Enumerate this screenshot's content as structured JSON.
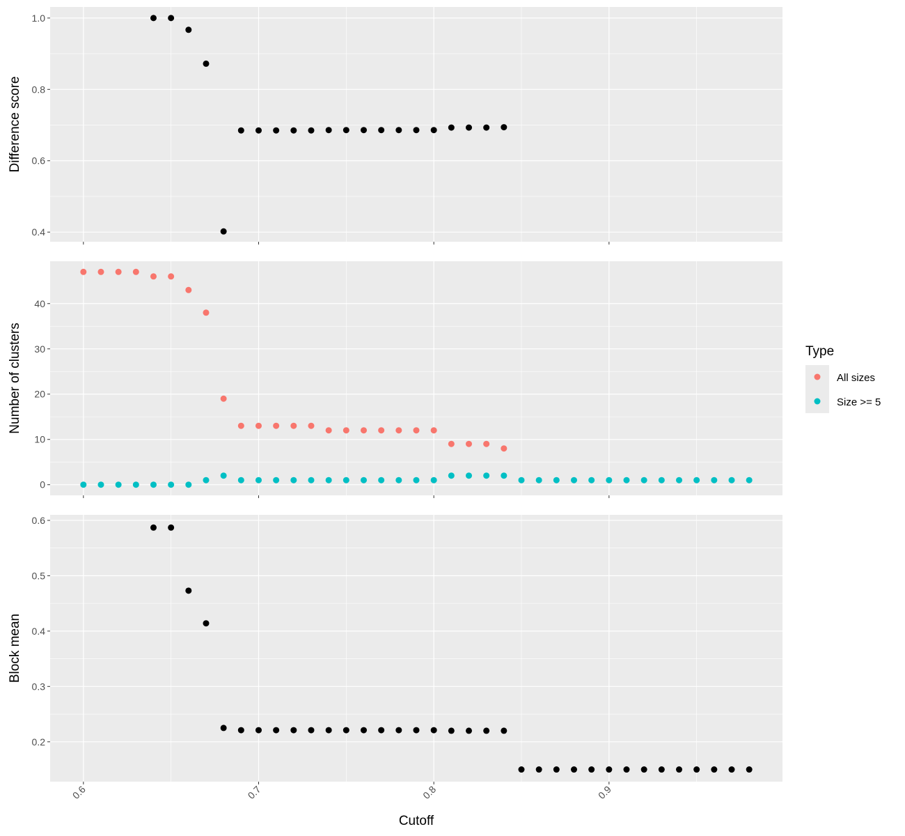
{
  "chart_data": {
    "type": "scatter",
    "xlabel": "Cutoff",
    "x_ticks": [
      0.6,
      0.7,
      0.8,
      0.9
    ],
    "x_tick_labels": [
      "0.6",
      "0.7",
      "0.8",
      "0.9"
    ],
    "xlim": [
      0.581,
      0.999
    ],
    "panels": [
      {
        "id": "difference",
        "ylabel": "Difference score",
        "ylim": [
          0.373,
          1.031
        ],
        "y_ticks": [
          0.4,
          0.6,
          0.8,
          1.0
        ],
        "y_tick_labels": [
          "0.4",
          "0.6",
          "0.8",
          "1.0"
        ],
        "series": [
          {
            "color": "#000000",
            "x": [
              0.64,
              0.65,
              0.66,
              0.67,
              0.68,
              0.69,
              0.7,
              0.71,
              0.72,
              0.73,
              0.74,
              0.75,
              0.76,
              0.77,
              0.78,
              0.79,
              0.8,
              0.81,
              0.82,
              0.83,
              0.84
            ],
            "y": [
              1.0,
              1.0,
              0.967,
              0.872,
              0.402,
              0.685,
              0.685,
              0.685,
              0.685,
              0.685,
              0.686,
              0.686,
              0.686,
              0.686,
              0.686,
              0.686,
              0.686,
              0.693,
              0.693,
              0.693,
              0.694
            ]
          }
        ]
      },
      {
        "id": "clusters",
        "ylabel": "Number of clusters",
        "ylim": [
          -2.35,
          49.35
        ],
        "y_ticks": [
          0,
          10,
          20,
          30,
          40
        ],
        "y_tick_labels": [
          "0",
          "10",
          "20",
          "30",
          "40"
        ],
        "series": [
          {
            "name": "All sizes",
            "color": "#F8766D",
            "x": [
              0.6,
              0.61,
              0.62,
              0.63,
              0.64,
              0.65,
              0.66,
              0.67,
              0.68,
              0.69,
              0.7,
              0.71,
              0.72,
              0.73,
              0.74,
              0.75,
              0.76,
              0.77,
              0.78,
              0.79,
              0.8,
              0.81,
              0.82,
              0.83,
              0.84
            ],
            "y": [
              47,
              47,
              47,
              47,
              46,
              46,
              43,
              38,
              19,
              13,
              13,
              13,
              13,
              13,
              12,
              12,
              12,
              12,
              12,
              12,
              12,
              9,
              9,
              9,
              8
            ]
          },
          {
            "name": "Size >= 5",
            "color": "#00BFC4",
            "x": [
              0.6,
              0.61,
              0.62,
              0.63,
              0.64,
              0.65,
              0.66,
              0.67,
              0.68,
              0.69,
              0.7,
              0.71,
              0.72,
              0.73,
              0.74,
              0.75,
              0.76,
              0.77,
              0.78,
              0.79,
              0.8,
              0.81,
              0.82,
              0.83,
              0.84,
              0.85,
              0.86,
              0.87,
              0.88,
              0.89,
              0.9,
              0.91,
              0.92,
              0.93,
              0.94,
              0.95,
              0.96,
              0.97,
              0.98
            ],
            "y": [
              0,
              0,
              0,
              0,
              0,
              0,
              0,
              1,
              2,
              1,
              1,
              1,
              1,
              1,
              1,
              1,
              1,
              1,
              1,
              1,
              1,
              2,
              2,
              2,
              2,
              1,
              1,
              1,
              1,
              1,
              1,
              1,
              1,
              1,
              1,
              1,
              1,
              1,
              1
            ]
          }
        ]
      },
      {
        "id": "blockmean",
        "ylabel": "Block mean",
        "ylim": [
          0.128,
          0.61
        ],
        "y_ticks": [
          0.2,
          0.3,
          0.4,
          0.5,
          0.6
        ],
        "y_tick_labels": [
          "0.2",
          "0.3",
          "0.4",
          "0.5",
          "0.6"
        ],
        "series": [
          {
            "color": "#000000",
            "x": [
              0.64,
              0.65,
              0.66,
              0.67,
              0.68,
              0.69,
              0.7,
              0.71,
              0.72,
              0.73,
              0.74,
              0.75,
              0.76,
              0.77,
              0.78,
              0.79,
              0.8,
              0.81,
              0.82,
              0.83,
              0.84,
              0.85,
              0.86,
              0.87,
              0.88,
              0.89,
              0.9,
              0.91,
              0.92,
              0.93,
              0.94,
              0.95,
              0.96,
              0.97,
              0.98
            ],
            "y": [
              0.587,
              0.587,
              0.473,
              0.414,
              0.225,
              0.221,
              0.221,
              0.221,
              0.221,
              0.221,
              0.221,
              0.221,
              0.221,
              0.221,
              0.221,
              0.221,
              0.221,
              0.22,
              0.22,
              0.22,
              0.22,
              0.15,
              0.15,
              0.15,
              0.15,
              0.15,
              0.15,
              0.15,
              0.15,
              0.15,
              0.15,
              0.15,
              0.15,
              0.15,
              0.15
            ]
          }
        ]
      }
    ],
    "legend": {
      "title": "Type",
      "position": "right",
      "entries": [
        {
          "label": "All sizes",
          "color": "#F8766D"
        },
        {
          "label": "Size >= 5",
          "color": "#00BFC4"
        }
      ]
    },
    "grid": true,
    "panel_background": "#EBEBEB"
  }
}
